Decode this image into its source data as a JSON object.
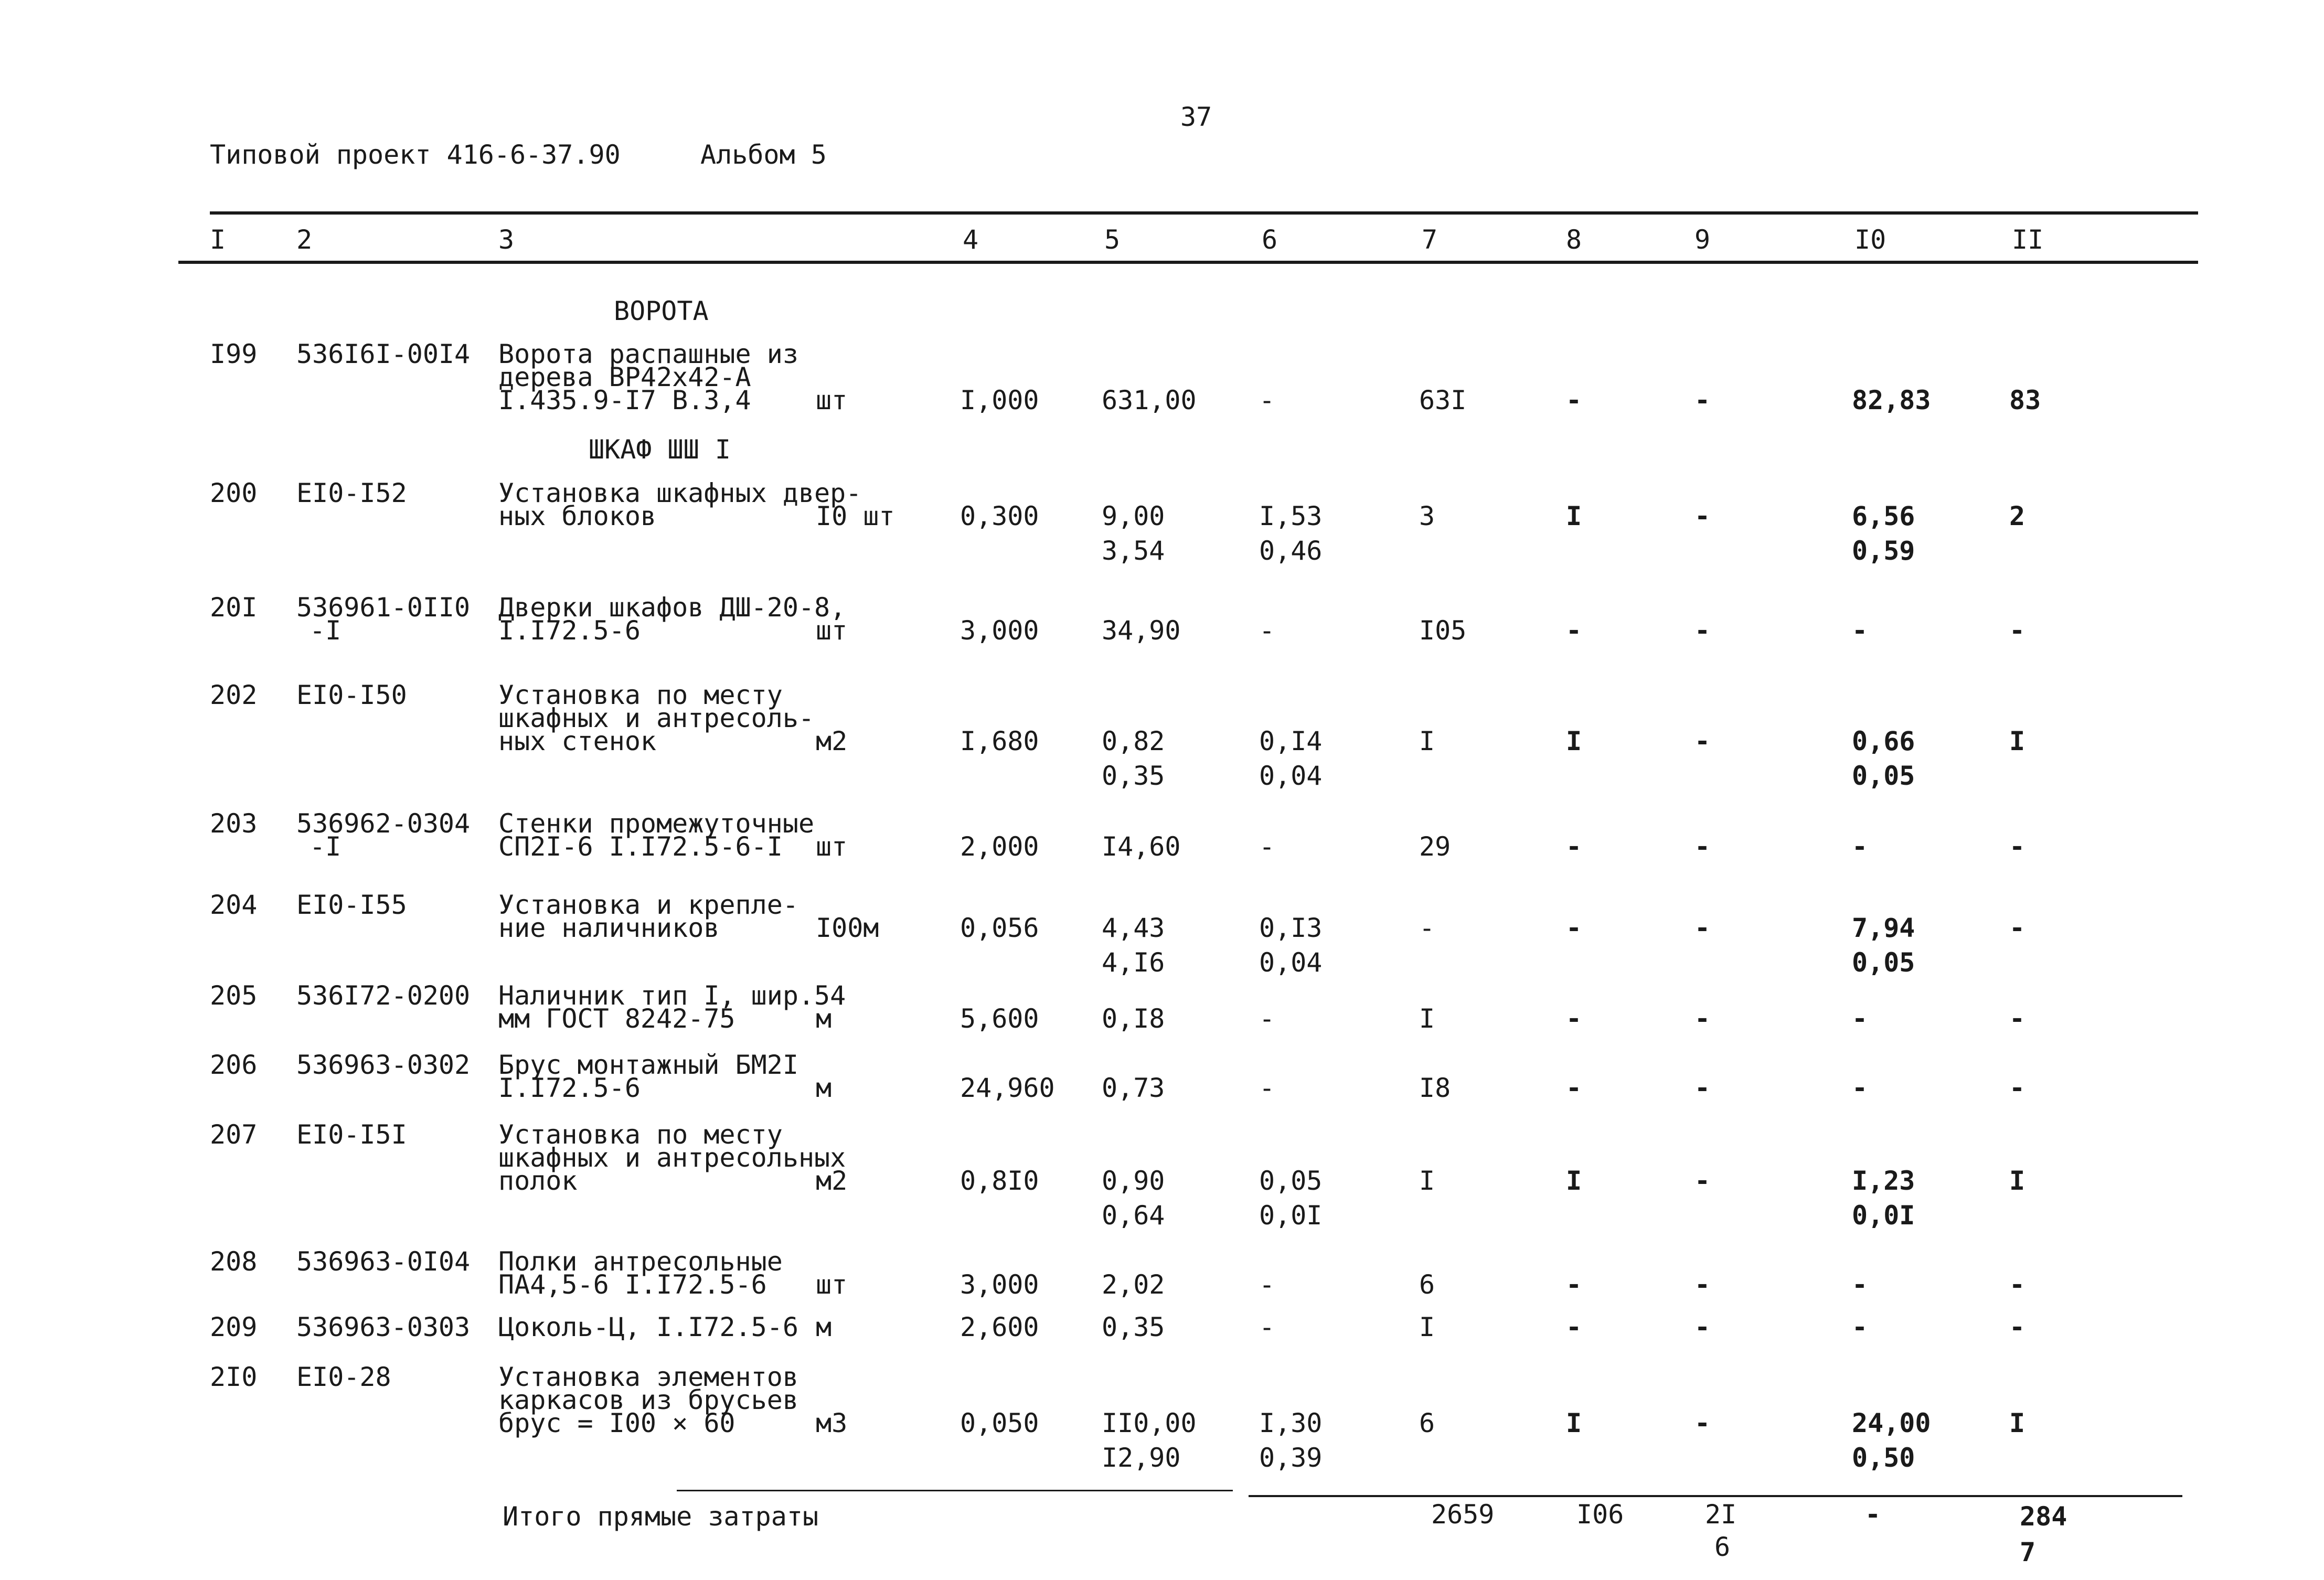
{
  "page_number": "37",
  "header": {
    "project": "Типовой проект 416-6-37.90",
    "album": "Альбом 5"
  },
  "columns": [
    "I",
    "2",
    "3",
    "4",
    "5",
    "6",
    "7",
    "8",
    "9",
    "I0",
    "II"
  ],
  "sections": {
    "gates": "ВОРОТА",
    "cabinet": "ШКАФ ШШ I"
  },
  "rows": [
    {
      "n": "I99",
      "code": "536I6I-00I4",
      "desc": [
        "Ворота распашные из",
        "дерева ВР42х42-А",
        "I.435.9-I7 В.3,4"
      ],
      "unit": "шт",
      "qty": "I,000",
      "c5": [
        "631,00"
      ],
      "c6": [
        "-"
      ],
      "c7": "63I",
      "c8": "-",
      "c9": "-",
      "c10": [
        "82,83"
      ],
      "c11": "83"
    },
    {
      "n": "200",
      "code": "ЕI0-I52",
      "desc": [
        "Установка шкафных двер-",
        "ных блоков"
      ],
      "unit": "I0 шт",
      "qty": "0,300",
      "c5": [
        "9,00",
        "3,54"
      ],
      "c6": [
        "I,53",
        "0,46"
      ],
      "c7": "3",
      "c8": "I",
      "c9": "-",
      "c10": [
        "6,56",
        "0,59"
      ],
      "c11": "2"
    },
    {
      "n": "20I",
      "code": "536961-0II0",
      "code2": "-I",
      "desc": [
        "Дверки шкафов ДШ-20-8,",
        "I.I72.5-6"
      ],
      "unit": "шт",
      "qty": "3,000",
      "c5": [
        "34,90"
      ],
      "c6": [
        "-"
      ],
      "c7": "I05",
      "c8": "-",
      "c9": "-",
      "c10": [
        "-"
      ],
      "c11": "-"
    },
    {
      "n": "202",
      "code": "ЕI0-I50",
      "desc": [
        "Установка по месту",
        "шкафных и антресоль-",
        "ных стенок"
      ],
      "unit": "м2",
      "qty": "I,680",
      "c5": [
        "0,82",
        "0,35"
      ],
      "c6": [
        "0,I4",
        "0,04"
      ],
      "c7": "I",
      "c8": "I",
      "c9": "-",
      "c10": [
        "0,66",
        "0,05"
      ],
      "c11": "I"
    },
    {
      "n": "203",
      "code": "536962-0304",
      "code2": "-I",
      "desc": [
        "Стенки промежуточные",
        "СП2I-6 I.I72.5-6-I"
      ],
      "unit": "шт",
      "qty": "2,000",
      "c5": [
        "I4,60"
      ],
      "c6": [
        "-"
      ],
      "c7": "29",
      "c8": "-",
      "c9": "-",
      "c10": [
        "-"
      ],
      "c11": "-"
    },
    {
      "n": "204",
      "code": "ЕI0-I55",
      "desc": [
        "Установка и крепле-",
        "ние наличников"
      ],
      "unit": "I00м",
      "qty": "0,056",
      "c5": [
        "4,43",
        "4,I6"
      ],
      "c6": [
        "0,I3",
        "0,04"
      ],
      "c7": "-",
      "c8": "-",
      "c9": "-",
      "c10": [
        "7,94",
        "0,05"
      ],
      "c11": "-"
    },
    {
      "n": "205",
      "code": "536I72-0200",
      "desc": [
        "Наличник тип I, шир.54",
        "мм ГОСТ 8242-75"
      ],
      "unit": "м",
      "qty": "5,600",
      "c5": [
        "0,I8"
      ],
      "c6": [
        "-"
      ],
      "c7": "I",
      "c8": "-",
      "c9": "-",
      "c10": [
        "-"
      ],
      "c11": "-"
    },
    {
      "n": "206",
      "code": "536963-0302",
      "desc": [
        "Брус монтажный БМ2I",
        "I.I72.5-6"
      ],
      "unit": "м",
      "qty": "24,960",
      "c5": [
        "0,73"
      ],
      "c6": [
        "-"
      ],
      "c7": "I8",
      "c8": "-",
      "c9": "-",
      "c10": [
        "-"
      ],
      "c11": "-"
    },
    {
      "n": "207",
      "code": "ЕI0-I5I",
      "desc": [
        "Установка по месту",
        "шкафных и антресольных",
        "полок"
      ],
      "unit": "м2",
      "qty": "0,8I0",
      "c5": [
        "0,90",
        "0,64"
      ],
      "c6": [
        "0,05",
        "0,0I"
      ],
      "c7": "I",
      "c8": "I",
      "c9": "-",
      "c10": [
        "I,23",
        "0,0I"
      ],
      "c11": "I"
    },
    {
      "n": "208",
      "code": "536963-0I04",
      "desc": [
        "Полки антресольные",
        "ПА4,5-6 I.I72.5-6"
      ],
      "unit": "шт",
      "qty": "3,000",
      "c5": [
        "2,02"
      ],
      "c6": [
        "-"
      ],
      "c7": "6",
      "c8": "-",
      "c9": "-",
      "c10": [
        "-"
      ],
      "c11": "-"
    },
    {
      "n": "209",
      "code": "536963-0303",
      "desc": [
        "Цоколь-Ц, I.I72.5-6"
      ],
      "unit": "м",
      "qty": "2,600",
      "c5": [
        "0,35"
      ],
      "c6": [
        "-"
      ],
      "c7": "I",
      "c8": "-",
      "c9": "-",
      "c10": [
        "-"
      ],
      "c11": "-"
    },
    {
      "n": "2I0",
      "code": "ЕI0-28",
      "desc": [
        "Установка элементов",
        "каркасов из брусьев",
        "брус = I00 × 60"
      ],
      "unit": "м3",
      "qty": "0,050",
      "c5": [
        "II0,00",
        "I2,90"
      ],
      "c6": [
        "I,30",
        "0,39"
      ],
      "c7": "6",
      "c8": "I",
      "c9": "-",
      "c10": [
        "24,00",
        "0,50"
      ],
      "c11": "I"
    }
  ],
  "total": {
    "label": "Итого прямые затраты",
    "c7": "2659",
    "c8": "I06",
    "c9": [
      "2I",
      "6"
    ],
    "c10": "-",
    "c11": [
      "284",
      "7"
    ]
  }
}
